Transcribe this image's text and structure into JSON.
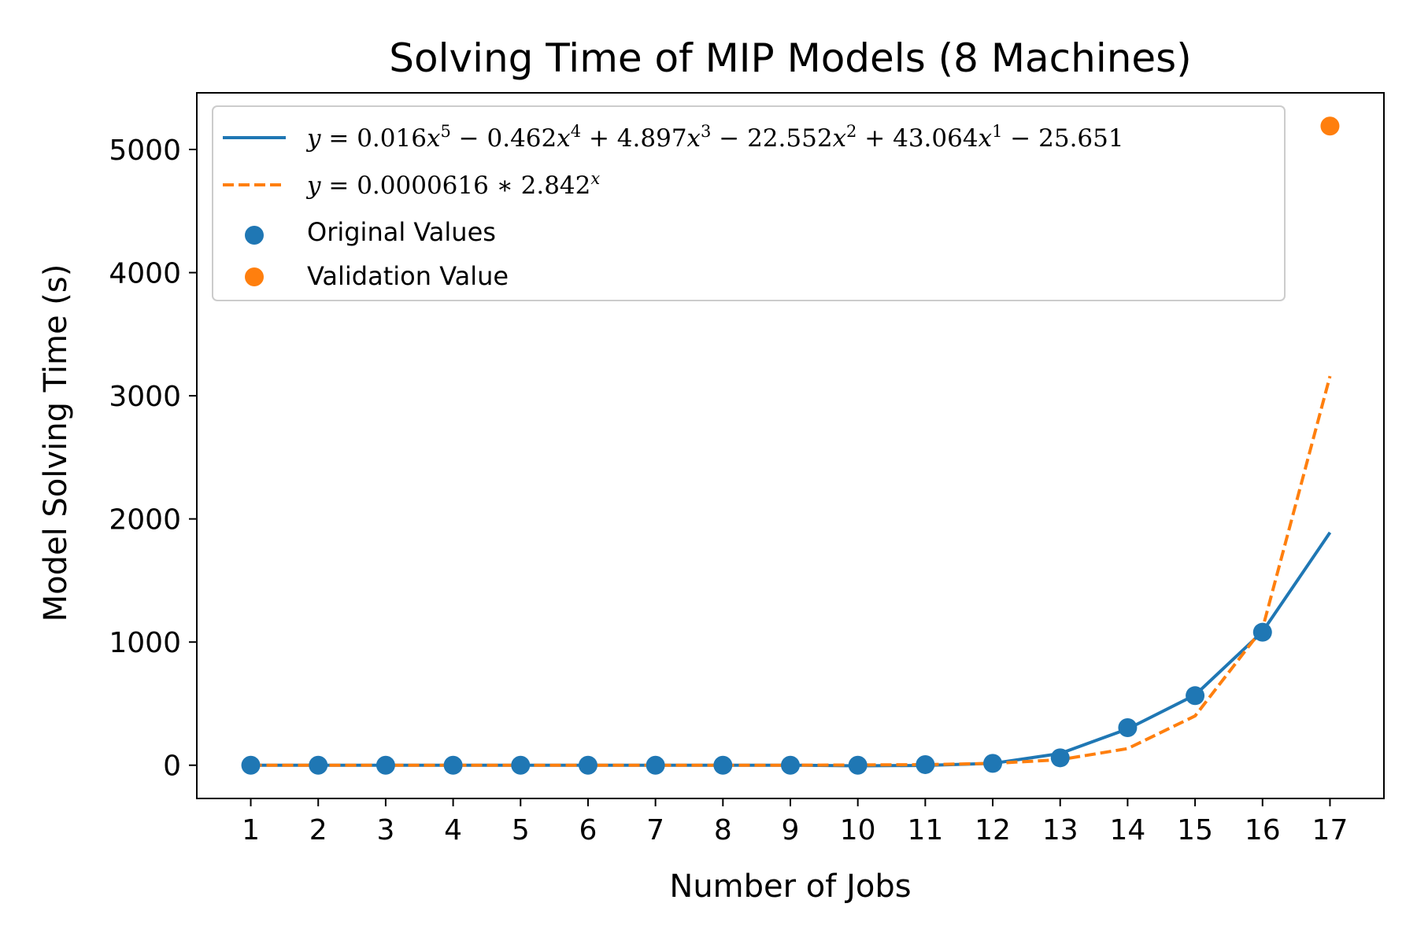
{
  "chart_data": {
    "type": "line",
    "title": "Solving Time of MIP Models (8 Machines)",
    "xlabel": "Number of Jobs",
    "ylabel": "Model Solving Time (s)",
    "xlim": [
      0.2,
      17.8
    ],
    "ylim": [
      -270,
      5460
    ],
    "x_ticks": [
      1,
      2,
      3,
      4,
      5,
      6,
      7,
      8,
      9,
      10,
      11,
      12,
      13,
      14,
      15,
      16,
      17
    ],
    "x_tick_labels": [
      "1",
      "2",
      "3",
      "4",
      "5",
      "6",
      "7",
      "8",
      "9",
      "10",
      "11",
      "12",
      "13",
      "14",
      "15",
      "16",
      "17"
    ],
    "y_ticks": [
      0,
      1000,
      2000,
      3000,
      4000,
      5000
    ],
    "y_tick_labels": [
      "0",
      "1000",
      "2000",
      "3000",
      "4000",
      "5000"
    ],
    "grid": false,
    "legend_position": "top-left",
    "series": [
      {
        "name": "y = 0.016x^5 − 0.462x^4 + 4.897x^3 − 22.552x^2 + 43.064x^1 − 25.651",
        "kind": "line",
        "style": "solid",
        "color": "#1f77b4",
        "x": [
          1,
          2,
          3,
          4,
          5,
          6,
          7,
          8,
          9,
          10,
          11,
          12,
          13,
          14,
          15,
          16,
          17
        ],
        "values": [
          0,
          0,
          0,
          0,
          0,
          0,
          0,
          0,
          0,
          -5,
          -2,
          15,
          95,
          295,
          570,
          1085,
          1890
        ]
      },
      {
        "name": "y = 0.0000616 * 2.842^x",
        "kind": "line",
        "style": "dashed",
        "color": "#ff7f0e",
        "x": [
          1,
          2,
          3,
          4,
          5,
          6,
          7,
          8,
          9,
          10,
          11,
          12,
          13,
          14,
          15,
          16,
          17
        ],
        "values": [
          0,
          0,
          0,
          0,
          0,
          0,
          0,
          0,
          0,
          2,
          5,
          15,
          45,
          135,
          400,
          1110,
          3160
        ]
      },
      {
        "name": "Original Values",
        "kind": "scatter",
        "color": "#1f77b4",
        "x": [
          1,
          2,
          3,
          4,
          5,
          6,
          7,
          8,
          9,
          10,
          11,
          12,
          13,
          14,
          15,
          16
        ],
        "values": [
          0,
          0,
          0,
          0,
          0,
          0,
          0,
          0,
          0,
          0,
          5,
          15,
          60,
          305,
          565,
          1080
        ]
      },
      {
        "name": "Validation Value",
        "kind": "scatter",
        "color": "#ff7f0e",
        "x": [
          17
        ],
        "values": [
          5190
        ]
      }
    ]
  }
}
